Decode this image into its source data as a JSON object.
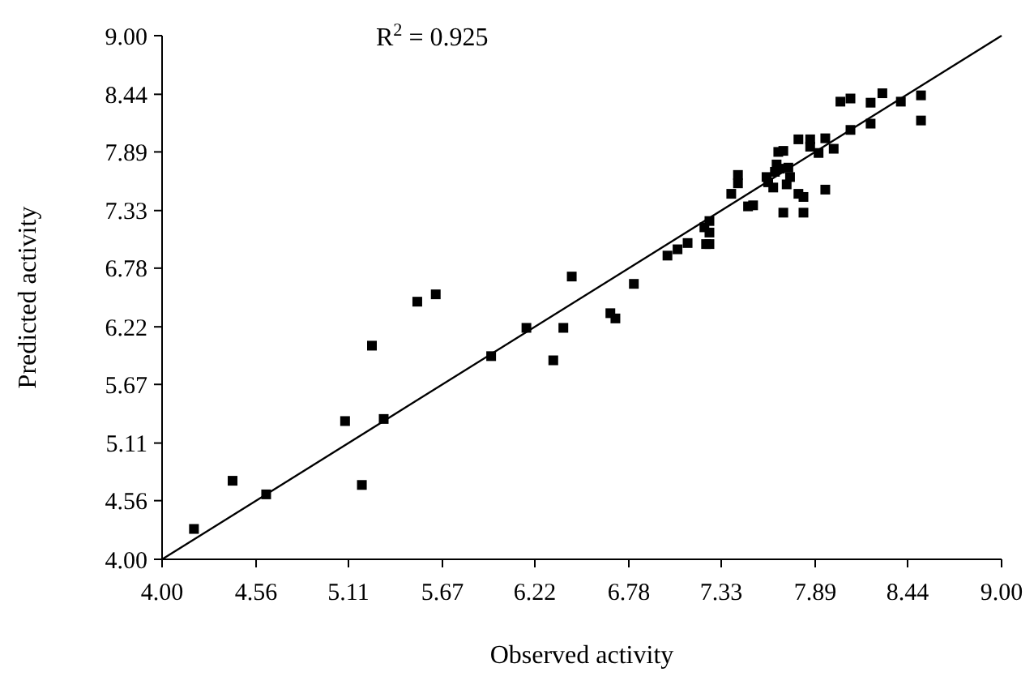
{
  "chart_data": {
    "type": "scatter",
    "xlabel": "Observed activity",
    "ylabel": "Predicted activity",
    "annotations": [
      "R$^{2}$ = 0.925"
    ],
    "xlim": [
      4.0,
      9.0
    ],
    "ylim": [
      4.0,
      9.0
    ],
    "xticks": [
      {
        "value": 4.0,
        "label": "4.00"
      },
      {
        "value": 4.56,
        "label": "4.56"
      },
      {
        "value": 5.11,
        "label": "5.11"
      },
      {
        "value": 5.67,
        "label": "5.67"
      },
      {
        "value": 6.22,
        "label": "6.22"
      },
      {
        "value": 6.78,
        "label": "6.78"
      },
      {
        "value": 7.33,
        "label": "7.33"
      },
      {
        "value": 7.89,
        "label": "7.89"
      },
      {
        "value": 8.44,
        "label": "8.44"
      },
      {
        "value": 9.0,
        "label": "9.00"
      }
    ],
    "yticks": [
      {
        "value": 4.0,
        "label": "4.00"
      },
      {
        "value": 4.56,
        "label": "4.56"
      },
      {
        "value": 5.11,
        "label": "5.11"
      },
      {
        "value": 5.67,
        "label": "5.67"
      },
      {
        "value": 6.22,
        "label": "6.22"
      },
      {
        "value": 6.78,
        "label": "6.78"
      },
      {
        "value": 7.33,
        "label": "7.33"
      },
      {
        "value": 7.89,
        "label": "7.89"
      },
      {
        "value": 8.44,
        "label": "8.44"
      },
      {
        "value": 9.0,
        "label": "9.00"
      }
    ],
    "grid": false,
    "marker": "square",
    "series": [
      {
        "color": "#000000",
        "x": [
          4.19,
          4.42,
          4.62,
          5.09,
          5.19,
          5.25,
          5.32,
          5.52,
          5.63,
          5.96,
          6.17,
          6.33,
          6.39,
          6.44,
          6.67,
          6.7,
          6.81,
          7.01,
          7.07,
          7.13,
          7.23,
          7.24,
          7.26,
          7.26,
          7.26,
          7.39,
          7.43,
          7.43,
          7.49,
          7.52,
          7.6,
          7.61,
          7.64,
          7.65,
          7.66,
          7.67,
          7.68,
          7.7,
          7.7,
          7.72,
          7.73,
          7.74,
          7.79,
          7.79,
          7.82,
          7.82,
          7.86,
          7.86,
          7.91,
          7.95,
          7.95,
          8.0,
          8.04,
          8.1,
          8.1,
          8.22,
          8.22,
          8.29,
          8.4,
          8.52,
          8.52
        ],
        "values": [
          4.29,
          4.75,
          4.62,
          5.32,
          4.71,
          6.04,
          5.34,
          6.46,
          6.53,
          5.94,
          6.21,
          5.9,
          6.21,
          6.7,
          6.35,
          6.3,
          6.63,
          6.9,
          6.96,
          7.02,
          7.17,
          7.01,
          7.01,
          7.23,
          7.12,
          7.49,
          7.67,
          7.59,
          7.37,
          7.38,
          7.65,
          7.6,
          7.55,
          7.7,
          7.77,
          7.89,
          7.73,
          7.9,
          7.31,
          7.58,
          7.74,
          7.65,
          8.01,
          7.49,
          7.46,
          7.31,
          8.01,
          7.94,
          7.88,
          8.02,
          7.53,
          7.92,
          8.37,
          8.4,
          8.1,
          8.36,
          8.16,
          8.45,
          8.37,
          8.43,
          8.19
        ]
      },
      {
        "type": "line",
        "color": "#000000",
        "x": [
          4.0,
          9.0
        ],
        "values": [
          4.0,
          9.0
        ],
        "marker": "none",
        "line_style": "solid"
      }
    ]
  }
}
